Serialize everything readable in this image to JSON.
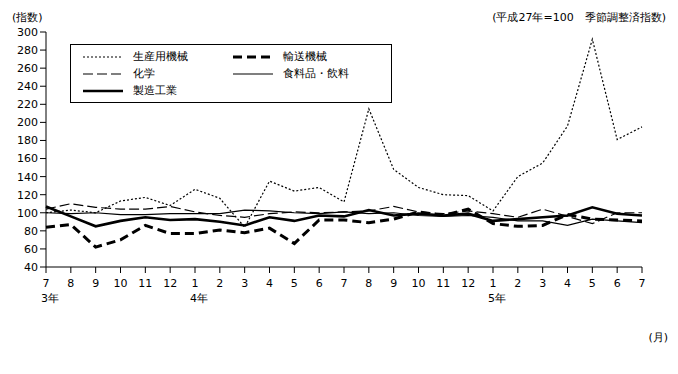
{
  "chart_data": {
    "type": "line",
    "subtitle": "(平成27年=100　季節調整済指数)",
    "y_label": "(指数)",
    "x_label": "(月)",
    "categories": [
      "7",
      "8",
      "9",
      "10",
      "11",
      "12",
      "1",
      "2",
      "3",
      "4",
      "5",
      "6",
      "7",
      "8",
      "9",
      "10",
      "11",
      "12",
      "1",
      "2",
      "3",
      "4",
      "5",
      "6",
      "7"
    ],
    "category_groups": [
      "3年",
      null,
      null,
      null,
      null,
      null,
      "4年",
      null,
      null,
      null,
      null,
      null,
      null,
      null,
      null,
      null,
      null,
      null,
      "5年",
      null,
      null,
      null,
      null,
      null,
      null
    ],
    "ylim": [
      40,
      300
    ],
    "yticks": [
      40,
      60,
      80,
      100,
      120,
      140,
      160,
      180,
      200,
      220,
      240,
      260,
      280,
      300
    ],
    "grid": false,
    "legend": "upper left",
    "series": [
      {
        "name": "生産用機械",
        "color": "#000000",
        "line_style": "dotted",
        "values": [
          100,
          103,
          100,
          113,
          117,
          108,
          126,
          116,
          84,
          135,
          124,
          128,
          112,
          215,
          148,
          128,
          120,
          119,
          102,
          140,
          155,
          196,
          292,
          181,
          195
        ]
      },
      {
        "name": "輸送機械",
        "color": "#000000",
        "line_style": "bold_dashed",
        "values": [
          84,
          87,
          62,
          70,
          86,
          77,
          77,
          81,
          78,
          83,
          66,
          92,
          92,
          89,
          93,
          101,
          97,
          104,
          88,
          85,
          86,
          98,
          93,
          92,
          91
        ]
      },
      {
        "name": "化学",
        "color": "#000000",
        "line_style": "dashed",
        "values": [
          104,
          110,
          106,
          104,
          104,
          107,
          101,
          97,
          95,
          99,
          101,
          100,
          101,
          102,
          107,
          101,
          99,
          102,
          99,
          95,
          104,
          96,
          88,
          100,
          100
        ]
      },
      {
        "name": "食料品・飲料",
        "color": "#000000",
        "line_style": "solid",
        "values": [
          100,
          99,
          100,
          98,
          98,
          99,
          99,
          99,
          103,
          102,
          100,
          99,
          101,
          99,
          100,
          97,
          96,
          97,
          95,
          91,
          91,
          86,
          93,
          91,
          89
        ]
      },
      {
        "name": "製造工業",
        "color": "#000000",
        "line_style": "bold",
        "values": [
          107,
          96,
          85,
          91,
          95,
          92,
          93,
          90,
          86,
          95,
          91,
          97,
          96,
          103,
          97,
          99,
          97,
          99,
          91,
          93,
          95,
          97,
          106,
          99,
          97
        ]
      }
    ]
  }
}
